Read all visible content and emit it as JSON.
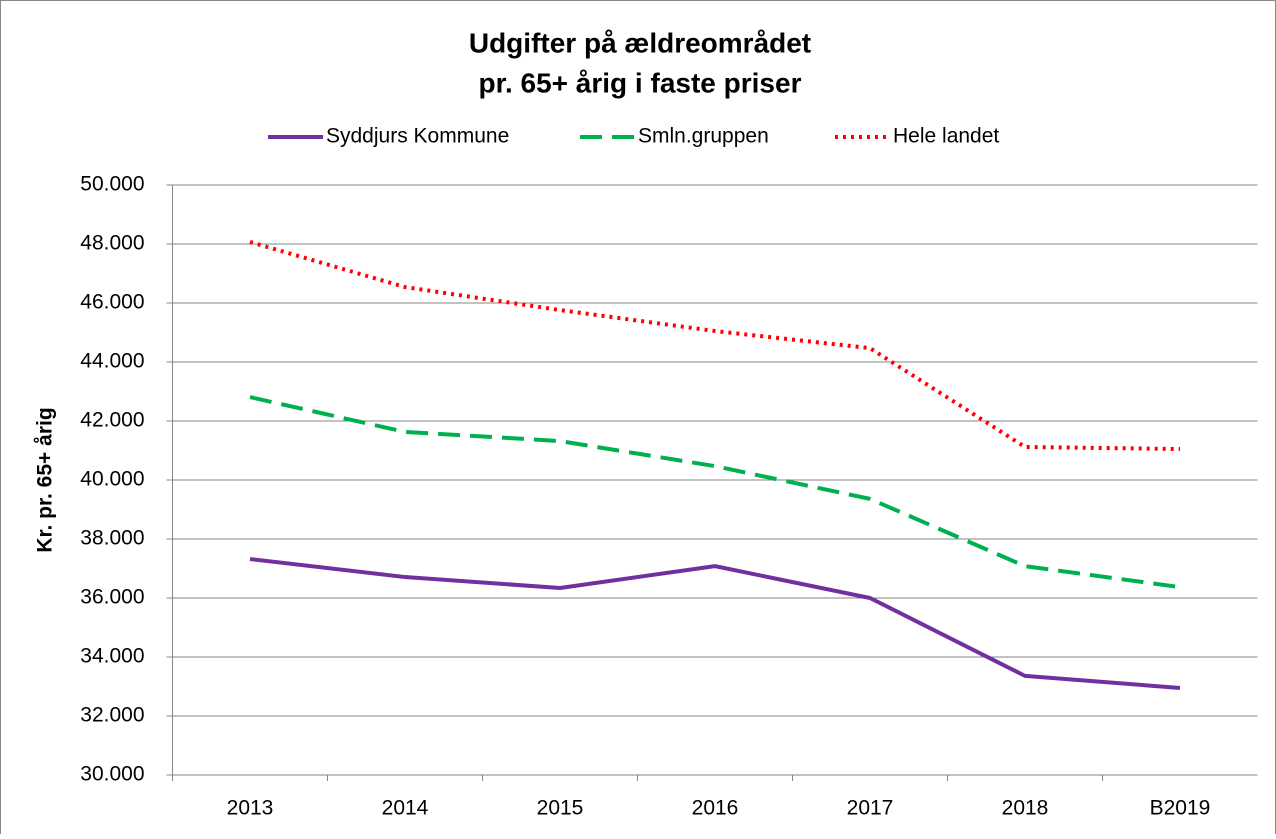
{
  "chart_data": {
    "type": "line",
    "title": [
      "Udgifter på ældreområdet",
      "pr. 65+ årig i faste priser"
    ],
    "ylabel": "Kr. pr. 65+ årig",
    "categories": [
      "2013",
      "2014",
      "2015",
      "2016",
      "2017",
      "2018",
      "B2019"
    ],
    "series": [
      {
        "name": "Syddjurs Kommune",
        "color": "#7030a0",
        "dash": "solid",
        "values": [
          37320,
          36710,
          36340,
          37080,
          36000,
          33360,
          32950
        ]
      },
      {
        "name": "Smln.gruppen",
        "color": "#00b050",
        "dash": "dashed",
        "values": [
          42810,
          41630,
          41320,
          40470,
          39360,
          37080,
          36370
        ]
      },
      {
        "name": "Hele landet",
        "color": "#ff0000",
        "dash": "dotted",
        "values": [
          48070,
          46540,
          45760,
          45050,
          44470,
          41120,
          41050
        ]
      }
    ],
    "ylim": [
      30000,
      50000
    ],
    "yticks": [
      {
        "value": 30000,
        "label": "30.000"
      },
      {
        "value": 32000,
        "label": "32.000"
      },
      {
        "value": 34000,
        "label": "34.000"
      },
      {
        "value": 36000,
        "label": "36.000"
      },
      {
        "value": 38000,
        "label": "38.000"
      },
      {
        "value": 40000,
        "label": "40.000"
      },
      {
        "value": 42000,
        "label": "42.000"
      },
      {
        "value": 44000,
        "label": "44.000"
      },
      {
        "value": 46000,
        "label": "46.000"
      },
      {
        "value": 48000,
        "label": "48.000"
      },
      {
        "value": 50000,
        "label": "50.000"
      }
    ],
    "grid": true,
    "legend": "top"
  }
}
